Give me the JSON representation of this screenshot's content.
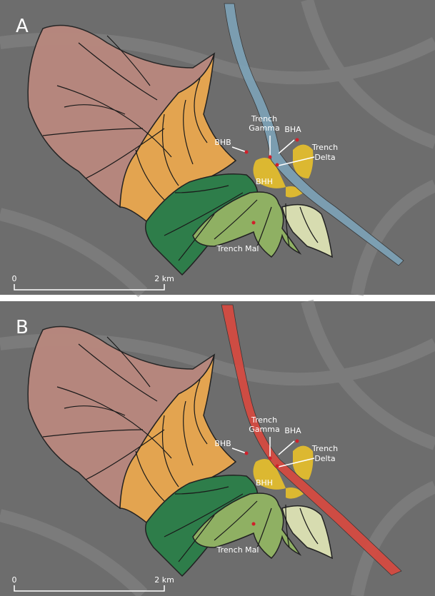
{
  "panels": [
    {
      "letter": "A",
      "labels": [
        {
          "lines": [
            "Trench",
            "Gamma"
          ]
        },
        {
          "lines": [
            "BHA"
          ]
        },
        {
          "lines": [
            "BHB"
          ]
        },
        {
          "lines": [
            "Trench",
            "Delta"
          ]
        },
        {
          "lines": [
            "BHH"
          ]
        },
        {
          "lines": [
            "Trench Mal"
          ]
        }
      ],
      "scale": [
        "0",
        "2 km"
      ]
    },
    {
      "letter": "B",
      "labels": [
        {
          "lines": [
            "Trench",
            "Gamma"
          ]
        },
        {
          "lines": [
            "BHA"
          ]
        },
        {
          "lines": [
            "BHB"
          ]
        },
        {
          "lines": [
            "Trench",
            "Delta"
          ]
        },
        {
          "lines": [
            "BHH"
          ]
        },
        {
          "lines": [
            "Trench Mal"
          ]
        }
      ],
      "scale": [
        "0",
        "2 km"
      ]
    }
  ]
}
